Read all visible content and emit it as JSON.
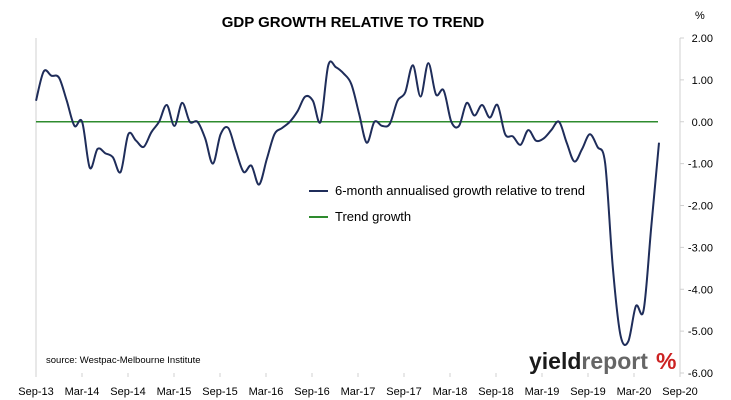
{
  "chart_data": {
    "type": "line",
    "title": "GDP GROWTH RELATIVE TO TREND",
    "y_unit": "%",
    "ylim": [
      -6,
      2
    ],
    "y_ticks": [
      2,
      1,
      0,
      -1,
      -2,
      -3,
      -4,
      -5,
      -6
    ],
    "y_tick_labels": [
      "2.00",
      "1.00",
      "0.00",
      "-1.00",
      "-2.00",
      "-3.00",
      "-4.00",
      "-5.00",
      "-6.00"
    ],
    "x_ticks": [
      "Sep-13",
      "Mar-14",
      "Sep-14",
      "Mar-15",
      "Sep-15",
      "Mar-16",
      "Sep-16",
      "Mar-17",
      "Sep-17",
      "Mar-18",
      "Sep-18",
      "Mar-19",
      "Sep-19",
      "Mar-20",
      "Sep-20"
    ],
    "grid": false,
    "legend_position": "center-right",
    "series": [
      {
        "name": "6-month annualised growth relative to trend",
        "color": "#1f2d5a",
        "values": [
          0.5,
          1.2,
          1.1,
          1.05,
          0.5,
          -0.1,
          0.0,
          -1.1,
          -0.65,
          -0.75,
          -0.85,
          -1.2,
          -0.3,
          -0.45,
          -0.6,
          -0.25,
          0.0,
          0.4,
          -0.1,
          0.45,
          0.0,
          0.0,
          -0.4,
          -1.0,
          -0.3,
          -0.15,
          -0.7,
          -1.2,
          -1.05,
          -1.5,
          -0.9,
          -0.3,
          -0.15,
          0.0,
          0.25,
          0.6,
          0.5,
          0.0,
          1.35,
          1.3,
          1.15,
          0.9,
          0.2,
          -0.5,
          0.0,
          -0.1,
          -0.05,
          0.5,
          0.7,
          1.35,
          0.6,
          1.4,
          0.65,
          0.75,
          0.0,
          -0.1,
          0.45,
          0.15,
          0.4,
          0.1,
          0.4,
          -0.3,
          -0.35,
          -0.55,
          -0.2,
          -0.45,
          -0.4,
          -0.2,
          0.0,
          -0.5,
          -0.95,
          -0.65,
          -0.3,
          -0.6,
          -1.0,
          -3.5,
          -5.1,
          -5.25,
          -4.4,
          -4.5,
          -2.5,
          -0.5
        ]
      },
      {
        "name": "Trend growth",
        "color": "#2e8b2e",
        "values": [
          0,
          0
        ]
      }
    ]
  },
  "source": "source: Westpac-Melbourne Institute",
  "logo": {
    "text_a": "yield",
    "text_b": "report",
    "glyph": "%",
    "color_a": "#1a1a1a",
    "color_b": "#666666",
    "color_glyph": "#cc2222"
  }
}
